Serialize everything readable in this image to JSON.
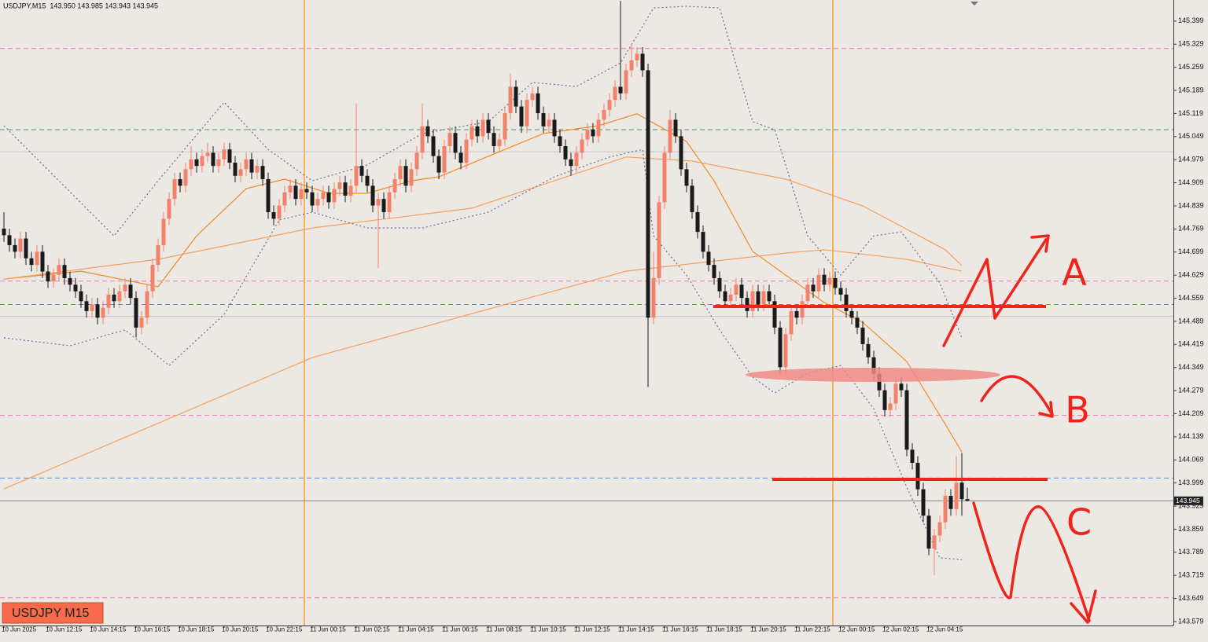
{
  "chart_data": {
    "type": "candlestick",
    "title": "USDJPY,M15  143.950 143.985 143.943 143.945",
    "label": "USDJPY M15",
    "annotations": [
      "A",
      "B",
      "C"
    ],
    "up_color": "#f2826c",
    "down_color": "#1a1a1a",
    "ylim": [
      143.567,
      145.463
    ],
    "yticks": [
      145.399,
      145.329,
      145.259,
      145.189,
      145.119,
      145.049,
      144.979,
      144.909,
      144.839,
      144.769,
      144.699,
      144.629,
      144.559,
      144.489,
      144.419,
      144.349,
      144.279,
      144.209,
      144.139,
      144.069,
      143.999,
      143.929,
      143.859,
      143.789,
      143.719,
      143.649,
      143.579
    ],
    "categories": [
      "10 Jun 2025",
      null,
      null,
      null,
      null,
      null,
      null,
      null,
      "10 Jun 12:15",
      null,
      null,
      null,
      null,
      null,
      null,
      null,
      "10 Jun 14:15",
      null,
      null,
      null,
      null,
      null,
      null,
      null,
      "10 Jun 16:15",
      null,
      null,
      null,
      null,
      null,
      null,
      null,
      "10 Jun 18:15",
      null,
      null,
      null,
      null,
      null,
      null,
      null,
      "10 Jun 20:15",
      null,
      null,
      null,
      null,
      null,
      null,
      null,
      "10 Jun 22:15",
      null,
      null,
      null,
      null,
      null,
      null,
      null,
      "11 Jun 00:15",
      null,
      null,
      null,
      null,
      null,
      null,
      null,
      "11 Jun 02:15",
      null,
      null,
      null,
      null,
      null,
      null,
      null,
      "11 Jun 04:15",
      null,
      null,
      null,
      null,
      null,
      null,
      null,
      "11 Jun 06:15",
      null,
      null,
      null,
      null,
      null,
      null,
      null,
      "11 Jun 08:15",
      null,
      null,
      null,
      null,
      null,
      null,
      null,
      "11 Jun 10:15",
      null,
      null,
      null,
      null,
      null,
      null,
      null,
      "11 Jun 12:15",
      null,
      null,
      null,
      null,
      null,
      null,
      null,
      "11 Jun 14:15",
      null,
      null,
      null,
      null,
      null,
      null,
      null,
      "11 Jun 16:15",
      null,
      null,
      null,
      null,
      null,
      null,
      null,
      "11 Jun 18:15",
      null,
      null,
      null,
      null,
      null,
      null,
      null,
      "11 Jun 20:15",
      null,
      null,
      null,
      null,
      null,
      null,
      null,
      "11 Jun 22:15",
      null,
      null,
      null,
      null,
      null,
      null,
      null,
      "12 Jun 00:15",
      null,
      null,
      null,
      null,
      null,
      null,
      null,
      "12 Jun 02:15",
      null,
      null,
      null,
      null,
      null,
      null,
      null,
      "12 Jun 04:15",
      null,
      null,
      null,
      null,
      null,
      null,
      null
    ],
    "open": [
      144.77,
      144.75,
      144.72,
      144.7,
      144.74,
      144.68,
      144.66,
      144.7,
      144.64,
      144.61,
      144.63,
      144.66,
      144.62,
      144.6,
      144.58,
      144.55,
      144.52,
      144.54,
      144.5,
      144.53,
      144.57,
      144.55,
      144.58,
      144.6,
      144.56,
      144.47,
      144.5,
      144.58,
      144.66,
      144.72,
      144.8,
      144.86,
      144.92,
      144.9,
      144.95,
      144.98,
      144.96,
      144.99,
      145.0,
      144.96,
      144.98,
      145.01,
      144.97,
      144.93,
      144.95,
      144.98,
      144.94,
      144.96,
      144.92,
      144.82,
      144.8,
      144.84,
      144.88,
      144.9,
      144.86,
      144.89,
      144.88,
      144.84,
      144.86,
      144.88,
      144.85,
      144.89,
      144.91,
      144.87,
      144.9,
      144.96,
      144.93,
      144.9,
      144.84,
      144.86,
      144.82,
      144.88,
      144.92,
      144.96,
      144.9,
      144.95,
      145.0,
      145.08,
      145.05,
      144.99,
      144.94,
      145.02,
      145.06,
      145.0,
      144.97,
      145.04,
      145.08,
      145.05,
      145.1,
      145.06,
      145.02,
      145.04,
      145.12,
      145.2,
      145.14,
      145.08,
      145.16,
      145.18,
      145.12,
      145.08,
      145.1,
      145.05,
      145.02,
      144.98,
      144.96,
      145.0,
      145.04,
      145.07,
      145.05,
      145.1,
      145.13,
      145.16,
      145.2,
      145.18,
      145.25,
      145.28,
      145.3,
      145.25,
      144.5,
      144.62,
      144.85,
      145.0,
      145.1,
      145.05,
      144.95,
      144.9,
      144.82,
      144.76,
      144.7,
      144.66,
      144.62,
      144.58,
      144.55,
      144.57,
      144.6,
      144.56,
      144.52,
      144.58,
      144.54,
      144.58,
      144.55,
      144.47,
      144.35,
      144.45,
      144.52,
      144.5,
      144.55,
      144.6,
      144.58,
      144.63,
      144.6,
      144.62,
      144.59,
      144.57,
      144.52,
      144.5,
      144.47,
      144.42,
      144.38,
      144.33,
      144.28,
      144.22,
      144.24,
      144.3,
      144.28,
      144.1,
      144.06,
      143.98,
      143.9,
      143.8,
      143.84,
      143.88,
      143.96,
      143.92,
      144.0,
      143.95
    ],
    "high": [
      144.82,
      144.77,
      144.74,
      144.76,
      144.76,
      144.7,
      144.72,
      144.72,
      144.66,
      144.65,
      144.68,
      144.68,
      144.64,
      144.62,
      144.6,
      144.57,
      144.56,
      144.56,
      144.55,
      144.59,
      144.59,
      144.6,
      144.62,
      144.62,
      144.58,
      144.52,
      144.6,
      144.68,
      144.74,
      144.82,
      144.88,
      144.94,
      144.94,
      144.97,
      145.02,
      145.0,
      145.01,
      145.03,
      145.02,
      145.0,
      145.03,
      145.03,
      144.99,
      144.97,
      145.0,
      145.0,
      144.98,
      144.98,
      144.94,
      144.84,
      144.86,
      144.9,
      144.92,
      144.92,
      144.91,
      144.91,
      144.9,
      144.88,
      144.9,
      144.9,
      144.91,
      144.93,
      144.93,
      144.92,
      145.15,
      144.98,
      144.95,
      144.92,
      144.88,
      144.88,
      144.9,
      144.94,
      144.98,
      144.98,
      144.97,
      145.02,
      145.15,
      145.1,
      145.07,
      145.01,
      145.04,
      145.08,
      145.08,
      145.02,
      145.06,
      145.1,
      145.1,
      145.12,
      145.12,
      145.08,
      145.06,
      145.14,
      145.24,
      145.22,
      145.16,
      145.18,
      145.2,
      145.2,
      145.14,
      145.12,
      145.12,
      145.07,
      145.04,
      145.0,
      145.02,
      145.06,
      145.09,
      145.09,
      145.12,
      145.15,
      145.18,
      145.22,
      145.46,
      145.27,
      145.33,
      145.32,
      145.32,
      145.27,
      144.7,
      144.87,
      145.02,
      145.13,
      145.12,
      145.07,
      144.97,
      144.92,
      144.84,
      144.78,
      144.72,
      144.68,
      144.64,
      144.6,
      144.59,
      144.62,
      144.62,
      144.58,
      144.6,
      144.6,
      144.6,
      144.6,
      144.57,
      144.49,
      144.47,
      144.54,
      144.54,
      144.57,
      144.62,
      144.62,
      144.65,
      144.65,
      144.64,
      144.64,
      144.61,
      144.59,
      144.54,
      144.52,
      144.49,
      144.44,
      144.4,
      144.35,
      144.3,
      144.26,
      144.32,
      144.32,
      144.3,
      144.12,
      144.08,
      144.0,
      143.92,
      143.86,
      143.9,
      143.98,
      143.98,
      144.08,
      144.09,
      143.985
    ],
    "low": [
      144.73,
      144.7,
      144.68,
      144.68,
      144.66,
      144.64,
      144.64,
      144.62,
      144.59,
      144.59,
      144.61,
      144.6,
      144.58,
      144.56,
      144.53,
      144.5,
      144.5,
      144.48,
      144.48,
      144.51,
      144.53,
      144.53,
      144.56,
      144.54,
      144.44,
      144.45,
      144.48,
      144.56,
      144.64,
      144.7,
      144.78,
      144.84,
      144.88,
      144.88,
      144.93,
      144.94,
      144.94,
      144.97,
      144.94,
      144.94,
      144.96,
      144.95,
      144.91,
      144.91,
      144.93,
      144.92,
      144.92,
      144.9,
      144.8,
      144.78,
      144.78,
      144.82,
      144.86,
      144.84,
      144.84,
      144.86,
      144.82,
      144.82,
      144.84,
      144.83,
      144.83,
      144.87,
      144.85,
      144.85,
      144.88,
      144.91,
      144.88,
      144.82,
      144.65,
      144.8,
      144.8,
      144.86,
      144.9,
      144.88,
      144.88,
      144.93,
      144.98,
      145.03,
      144.97,
      144.92,
      144.92,
      145.0,
      144.98,
      144.95,
      144.95,
      145.02,
      145.03,
      145.03,
      145.04,
      145.0,
      145.0,
      145.02,
      145.1,
      145.12,
      145.06,
      145.06,
      145.14,
      145.1,
      145.06,
      145.06,
      145.03,
      145.0,
      144.96,
      144.93,
      144.94,
      144.98,
      145.02,
      145.03,
      145.03,
      145.08,
      145.11,
      145.14,
      145.16,
      145.16,
      145.23,
      145.26,
      145.23,
      144.29,
      144.48,
      144.6,
      144.83,
      144.98,
      145.03,
      144.93,
      144.88,
      144.8,
      144.74,
      144.68,
      144.64,
      144.6,
      144.56,
      144.53,
      144.53,
      144.55,
      144.54,
      144.5,
      144.5,
      144.52,
      144.52,
      144.53,
      144.45,
      144.33,
      144.33,
      144.43,
      144.48,
      144.48,
      144.53,
      144.56,
      144.56,
      144.58,
      144.58,
      144.57,
      144.55,
      144.5,
      144.48,
      144.45,
      144.4,
      144.36,
      144.31,
      144.26,
      144.2,
      144.2,
      144.22,
      144.26,
      144.08,
      144.04,
      143.96,
      143.88,
      143.78,
      143.72,
      143.82,
      143.86,
      143.9,
      143.9,
      143.9,
      143.943
    ],
    "close": [
      144.75,
      144.72,
      144.7,
      144.74,
      144.68,
      144.66,
      144.7,
      144.64,
      144.61,
      144.63,
      144.66,
      144.62,
      144.6,
      144.58,
      144.55,
      144.52,
      144.54,
      144.5,
      144.53,
      144.57,
      144.55,
      144.58,
      144.6,
      144.56,
      144.47,
      144.5,
      144.58,
      144.66,
      144.72,
      144.8,
      144.86,
      144.92,
      144.9,
      144.95,
      144.98,
      144.96,
      144.99,
      145.0,
      144.96,
      144.98,
      145.01,
      144.97,
      144.93,
      144.95,
      144.98,
      144.94,
      144.96,
      144.92,
      144.82,
      144.8,
      144.84,
      144.88,
      144.9,
      144.86,
      144.89,
      144.88,
      144.84,
      144.86,
      144.88,
      144.85,
      144.89,
      144.91,
      144.87,
      144.9,
      144.96,
      144.93,
      144.9,
      144.84,
      144.86,
      144.82,
      144.88,
      144.92,
      144.96,
      144.9,
      144.95,
      145.0,
      145.08,
      145.05,
      144.99,
      144.94,
      145.02,
      145.06,
      145.0,
      144.97,
      145.04,
      145.08,
      145.05,
      145.1,
      145.06,
      145.02,
      145.04,
      145.12,
      145.2,
      145.14,
      145.08,
      145.16,
      145.18,
      145.12,
      145.08,
      145.1,
      145.05,
      145.02,
      144.98,
      144.96,
      145.0,
      145.04,
      145.07,
      145.05,
      145.1,
      145.13,
      145.16,
      145.2,
      145.18,
      145.25,
      145.28,
      145.3,
      145.25,
      144.5,
      144.62,
      144.85,
      145.0,
      145.1,
      145.05,
      144.95,
      144.9,
      144.82,
      144.76,
      144.7,
      144.66,
      144.62,
      144.58,
      144.55,
      144.57,
      144.6,
      144.56,
      144.52,
      144.58,
      144.54,
      144.58,
      144.55,
      144.47,
      144.35,
      144.45,
      144.52,
      144.5,
      144.55,
      144.6,
      144.58,
      144.63,
      144.6,
      144.62,
      144.59,
      144.57,
      144.52,
      144.5,
      144.47,
      144.42,
      144.38,
      144.33,
      144.28,
      144.22,
      144.24,
      144.3,
      144.28,
      144.1,
      144.06,
      143.98,
      143.9,
      143.8,
      143.84,
      143.88,
      143.96,
      143.92,
      144.0,
      143.95,
      143.945
    ],
    "levels": [
      {
        "value": 145.316,
        "color": "#e67ab4",
        "style": "dashed"
      },
      {
        "value": 145.07,
        "color": "#4a9a62",
        "style": "dashed"
      },
      {
        "value": 145.003,
        "color": "#c4c4c4",
        "style": "solid"
      },
      {
        "value": 144.611,
        "color": "#e67ab4",
        "style": "dashed"
      },
      {
        "value": 144.54,
        "color": "#5b8ed6",
        "style": "dashed"
      },
      {
        "value": 144.504,
        "color": "#c4c4c4",
        "style": "solid"
      },
      {
        "value": 144.204,
        "color": "#e67ab4",
        "style": "dashed"
      },
      {
        "value": 144.014,
        "color": "#5b8ed6",
        "style": "dashed"
      },
      {
        "value": 143.651,
        "color": "#e67ab4",
        "style": "dashed"
      }
    ],
    "overlays": [
      {
        "color": "#f58a24",
        "style": "solid",
        "x": [
          0,
          14,
          28,
          35,
          44,
          51,
          59,
          66,
          74,
          79,
          91,
          98,
          108,
          115,
          124,
          129,
          136,
          142,
          149,
          156,
          164,
          171,
          174
        ],
        "values": [
          144.617,
          144.641,
          144.594,
          144.748,
          144.891,
          144.92,
          144.877,
          144.877,
          144.915,
          144.927,
          145.01,
          145.058,
          145.082,
          145.118,
          145.034,
          144.915,
          144.701,
          144.629,
          144.546,
          144.486,
          144.367,
          144.177,
          144.093
        ]
      },
      {
        "color": "#f5a05a",
        "style": "solid",
        "x": [
          0,
          28,
          56,
          85,
          113,
          125,
          142,
          156,
          171,
          174
        ],
        "values": [
          144.617,
          144.677,
          144.772,
          144.832,
          144.987,
          144.975,
          144.92,
          144.839,
          144.706,
          144.658
        ]
      },
      {
        "color": "#f5a05a",
        "style": "solid",
        "x": [
          0,
          56,
          113,
          142,
          149,
          164,
          174
        ],
        "values": [
          143.981,
          144.379,
          144.641,
          144.696,
          144.706,
          144.677,
          144.641
        ]
      },
      {
        "color": "#6e6e90",
        "style": "dotted",
        "x": [
          0,
          10,
          20,
          28,
          40,
          48,
          56,
          66,
          76,
          88,
          96,
          104,
          112,
          118,
          124,
          130,
          136,
          140,
          146,
          152,
          158,
          163,
          170,
          174
        ],
        "values": [
          145.082,
          144.915,
          144.748,
          144.915,
          145.153,
          145.01,
          144.915,
          144.963,
          145.058,
          145.094,
          145.213,
          145.201,
          145.272,
          145.439,
          145.444,
          145.439,
          145.094,
          145.07,
          144.748,
          144.629,
          144.748,
          144.76,
          144.605,
          144.439
        ]
      },
      {
        "color": "#6e6e90",
        "style": "dotted",
        "x": [
          0,
          12,
          22,
          30,
          40,
          50,
          56,
          66,
          76,
          88,
          100,
          110,
          116,
          118,
          124,
          130,
          136,
          140,
          146,
          152,
          158,
          164,
          170,
          174
        ],
        "values": [
          144.439,
          144.415,
          144.463,
          144.355,
          144.51,
          144.796,
          144.82,
          144.772,
          144.772,
          144.82,
          144.927,
          144.987,
          145.01,
          144.748,
          144.629,
          144.463,
          144.32,
          144.272,
          144.332,
          144.355,
          144.224,
          143.986,
          143.772,
          143.767
        ]
      }
    ]
  }
}
